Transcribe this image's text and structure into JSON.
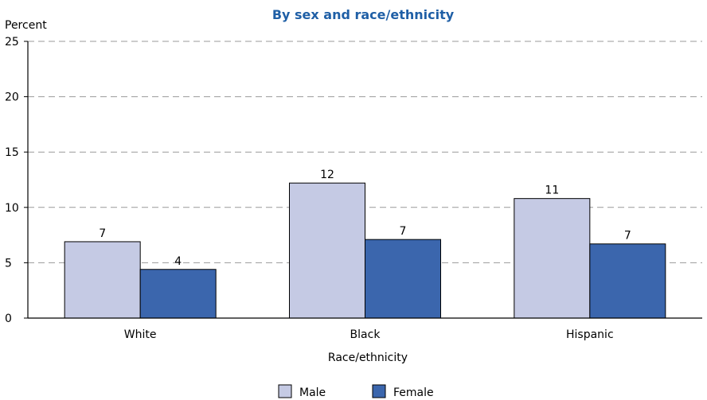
{
  "chart_data": {
    "type": "bar",
    "title": "By sex and race/ethnicity",
    "ylabel": "Percent",
    "xlabel": "Race/ethnicity",
    "categories": [
      "White",
      "Black",
      "Hispanic"
    ],
    "series": [
      {
        "name": "Male",
        "values": [
          6.9,
          12.2,
          10.8
        ],
        "labels": [
          "7",
          "12",
          "11"
        ]
      },
      {
        "name": "Female",
        "values": [
          4.4,
          7.1,
          6.7
        ],
        "labels": [
          "4",
          "7",
          "7"
        ]
      }
    ],
    "ylim": [
      0,
      25
    ],
    "yticks": [
      0,
      5,
      10,
      15,
      20,
      25
    ],
    "grid": true,
    "legend_position": "bottom",
    "colors": {
      "title": "#1f5fa6",
      "male_fill": "#c5cae4",
      "female_fill": "#3b66ad",
      "grid": "#999999",
      "bar_stroke": "#000000"
    }
  }
}
